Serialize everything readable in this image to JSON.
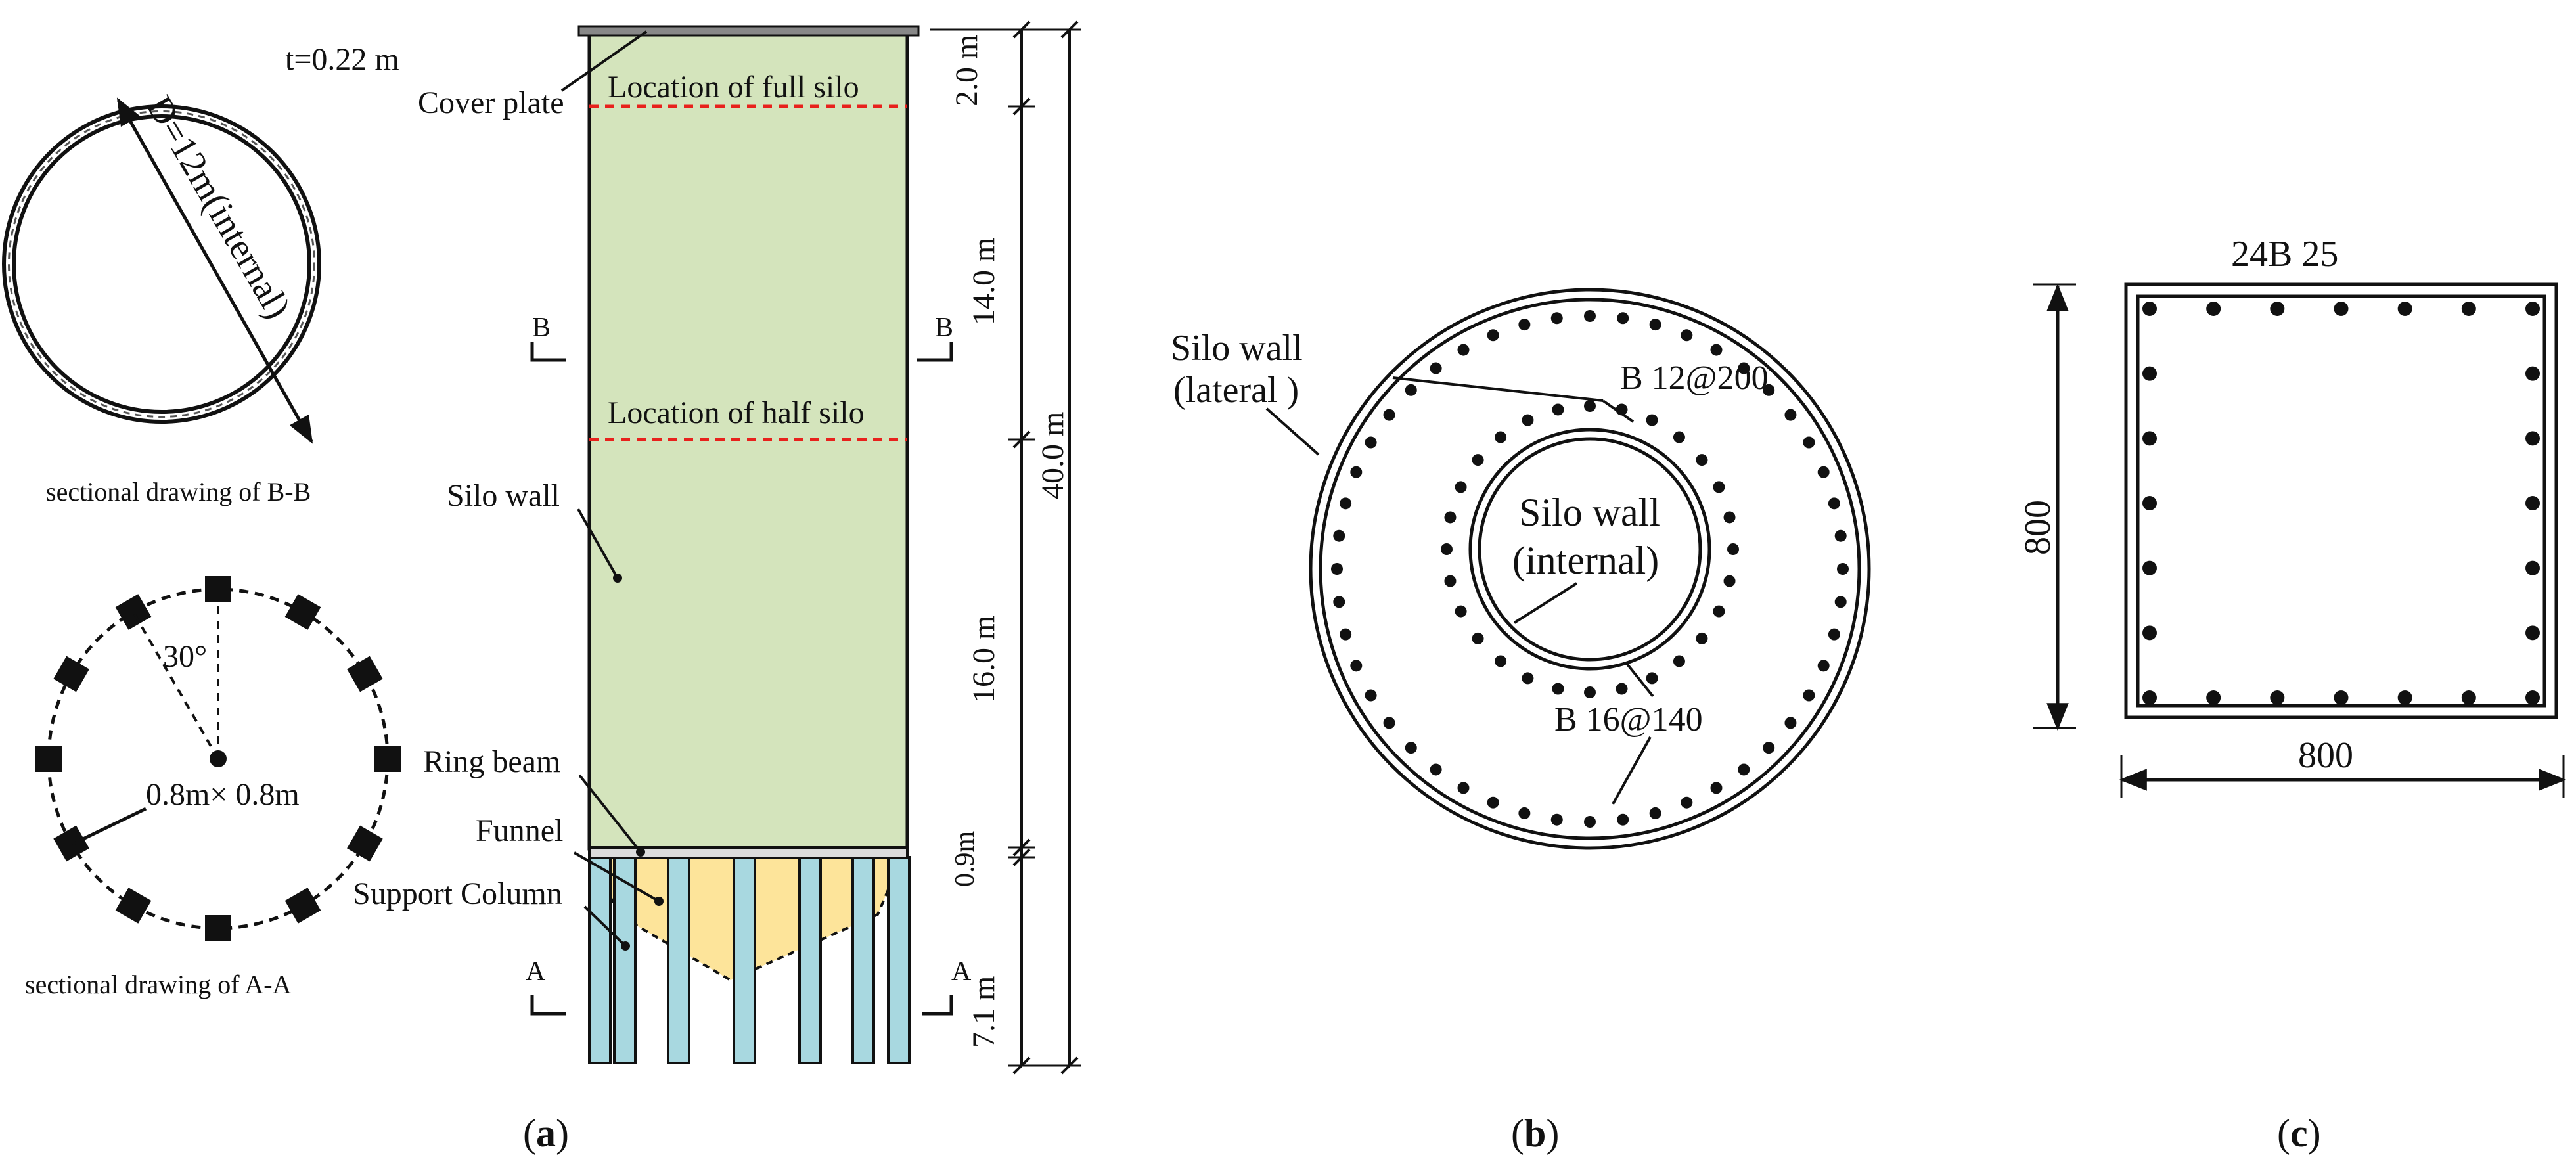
{
  "panel_a": {
    "caption_open": "(",
    "caption_letter": "a",
    "caption_close": ")",
    "section_bb": {
      "thickness": "t=0.22 m",
      "diameter": "D=12m(internal)",
      "caption": "sectional drawing of B-B"
    },
    "section_aa": {
      "angle": "30°",
      "column_size": "0.8m× 0.8m",
      "caption": "sectional drawing of A-A",
      "column_count": 12
    },
    "elevation": {
      "cover_plate": "Cover plate",
      "full_silo": "Location of full silo",
      "half_silo": "Location of half silo",
      "silo_wall": "Silo wall",
      "ring_beam": "Ring beam",
      "funnel": "Funnel",
      "support_column": "Support Column",
      "section_b_left": "B",
      "section_b_right": "B",
      "section_a_left": "A",
      "section_a_right": "A"
    },
    "dimensions": {
      "d1": "2.0 m",
      "d2": "14.0 m",
      "d3": "16.0 m",
      "d4": "0.9m",
      "d5": "7.1 m",
      "total": "40.0 m"
    },
    "colors": {
      "silo_fill": "#d4e4bc",
      "column_fill": "#a8d8e0",
      "funnel_fill": "#fde49a",
      "level_line": "#e8211c"
    }
  },
  "panel_b": {
    "caption_open": "(",
    "caption_letter": "b",
    "caption_close": ")",
    "lateral_wall_line1": "Silo wall",
    "lateral_wall_line2": "(lateral )",
    "internal_wall_line1": "Silo wall",
    "internal_wall_line2": "(internal)",
    "rebar_internal": "B 12@200",
    "rebar_lateral": "B 16@140"
  },
  "panel_c": {
    "caption_open": "(",
    "caption_letter": "c",
    "caption_close": ")",
    "rebar": "24B 25",
    "width": "800",
    "height": "800"
  }
}
